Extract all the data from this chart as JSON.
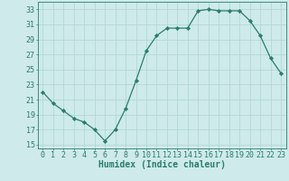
{
  "x": [
    0,
    1,
    2,
    3,
    4,
    5,
    6,
    7,
    8,
    9,
    10,
    11,
    12,
    13,
    14,
    15,
    16,
    17,
    18,
    19,
    20,
    21,
    22,
    23
  ],
  "y": [
    22,
    20.5,
    19.5,
    18.5,
    18,
    17,
    15.5,
    17,
    19.8,
    23.5,
    27.5,
    29.5,
    30.5,
    30.5,
    30.5,
    32.8,
    33,
    32.8,
    32.8,
    32.8,
    31.5,
    29.5,
    26.5,
    24.5
  ],
  "xlabel": "Humidex (Indice chaleur)",
  "xlim": [
    -0.5,
    23.5
  ],
  "ylim": [
    14.5,
    34
  ],
  "yticks": [
    15,
    17,
    19,
    21,
    23,
    25,
    27,
    29,
    31,
    33
  ],
  "xticks": [
    0,
    1,
    2,
    3,
    4,
    5,
    6,
    7,
    8,
    9,
    10,
    11,
    12,
    13,
    14,
    15,
    16,
    17,
    18,
    19,
    20,
    21,
    22,
    23
  ],
  "line_color": "#2a7d6e",
  "marker_color": "#2a7d6e",
  "bg_color": "#ceeaea",
  "grid_color": "#aed4d4",
  "text_color": "#2a7d6e",
  "label_fontsize": 7.0,
  "tick_fontsize": 6.0
}
